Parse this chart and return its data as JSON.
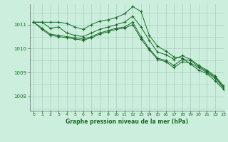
{
  "title": "Graphe pression niveau de la mer (hPa)",
  "bg_color": "#cceedd",
  "grid_color": "#aaccbb",
  "line_color": "#1a6b2a",
  "xlim": [
    -0.5,
    23
  ],
  "ylim": [
    1007.4,
    1011.85
  ],
  "yticks": [
    1008,
    1009,
    1010,
    1011
  ],
  "xticks": [
    0,
    1,
    2,
    3,
    4,
    5,
    6,
    7,
    8,
    9,
    10,
    11,
    12,
    13,
    14,
    15,
    16,
    17,
    18,
    19,
    20,
    21,
    22,
    23
  ],
  "lines": [
    [
      1011.1,
      1011.1,
      1011.1,
      1011.1,
      1011.05,
      1010.9,
      1010.8,
      1011.0,
      1011.15,
      1011.2,
      1011.3,
      1011.45,
      1011.75,
      1011.55,
      1010.55,
      1010.1,
      1009.9,
      1009.65,
      1009.6,
      1009.35,
      1009.1,
      1008.95,
      1008.65,
      1008.3
    ],
    [
      1011.1,
      1011.1,
      1010.85,
      1010.9,
      1010.65,
      1010.55,
      1010.5,
      1010.65,
      1010.8,
      1010.9,
      1011.0,
      1011.1,
      1011.35,
      1010.9,
      1010.35,
      1009.85,
      1009.75,
      1009.55,
      1009.7,
      1009.55,
      1009.3,
      1009.1,
      1008.85,
      1008.45
    ],
    [
      1011.1,
      1010.85,
      1010.6,
      1010.55,
      1010.5,
      1010.45,
      1010.4,
      1010.5,
      1010.65,
      1010.75,
      1010.85,
      1010.9,
      1011.1,
      1010.5,
      1010.0,
      1009.6,
      1009.5,
      1009.3,
      1009.55,
      1009.5,
      1009.25,
      1009.05,
      1008.8,
      1008.4
    ],
    [
      1011.1,
      1010.8,
      1010.55,
      1010.5,
      1010.45,
      1010.4,
      1010.35,
      1010.45,
      1010.6,
      1010.7,
      1010.8,
      1010.85,
      1011.0,
      1010.4,
      1009.95,
      1009.55,
      1009.45,
      1009.2,
      1009.45,
      1009.4,
      1009.2,
      1009.0,
      1008.75,
      1008.35
    ]
  ]
}
